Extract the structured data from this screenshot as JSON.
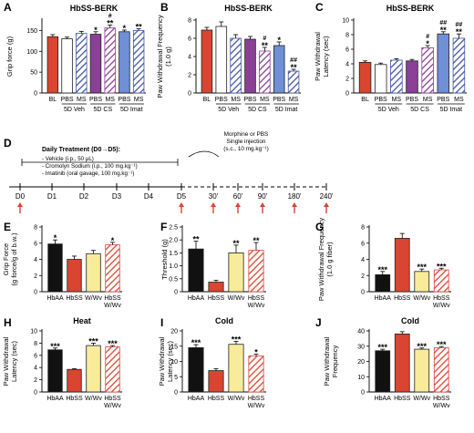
{
  "colors": {
    "red": "#d94530",
    "white": "#ffffff",
    "purple": "#8b3f97",
    "blue": "#6f8fd6",
    "black": "#111111",
    "yellow": "#f8ec9a",
    "hatch_blue": "#4355a8",
    "hatch_red": "#d94530"
  },
  "panels": [
    {
      "letter": "A",
      "title": "HbSS-BERK",
      "ylabel": "Grip force (g)",
      "ylim": [
        0,
        175
      ],
      "yticks": [
        0,
        50,
        100,
        150
      ],
      "bars": [
        {
          "label": "BL",
          "value": 135,
          "err": 5,
          "fill": "red",
          "sig": [
            ""
          ]
        },
        {
          "label": "PBS",
          "value": 130,
          "err": 4,
          "fill": "white",
          "sig": [
            ""
          ]
        },
        {
          "label": "MS",
          "value": 143,
          "err": 5,
          "fill": "hatch_blue",
          "sig": [
            ""
          ]
        },
        {
          "label": "PBS",
          "value": 141,
          "err": 6,
          "fill": "purple",
          "sig": [
            "*"
          ]
        },
        {
          "label": "MS",
          "value": 156,
          "err": 7,
          "fill": "hatch_purple",
          "sig": [
            "#",
            "**"
          ]
        },
        {
          "label": "PBS",
          "value": 147,
          "err": 4,
          "fill": "blue",
          "sig": [
            "*"
          ]
        },
        {
          "label": "MS",
          "value": 150,
          "err": 4,
          "fill": "hatch_blue",
          "sig": [
            "**"
          ]
        }
      ],
      "groups": [
        {
          "label": "5D Veh",
          "from": 1,
          "to": 2
        },
        {
          "label": "5D CS",
          "from": 3,
          "to": 4
        },
        {
          "label": "5D Imat",
          "from": 5,
          "to": 6
        }
      ]
    },
    {
      "letter": "B",
      "title": "HbSS-BERK",
      "ylabel": "Paw Withdrawal Frequency (1.0 g)",
      "ylim": [
        0,
        8
      ],
      "yticks": [
        0,
        2,
        4,
        6,
        8
      ],
      "bars": [
        {
          "label": "BL",
          "value": 6.9,
          "err": 0.3,
          "fill": "red",
          "sig": [
            ""
          ]
        },
        {
          "label": "PBS",
          "value": 7.3,
          "err": 0.5,
          "fill": "white",
          "sig": [
            ""
          ]
        },
        {
          "label": "MS",
          "value": 6.0,
          "err": 0.4,
          "fill": "hatch_blue",
          "sig": [
            ""
          ]
        },
        {
          "label": "PBS",
          "value": 5.9,
          "err": 0.3,
          "fill": "purple",
          "sig": [
            ""
          ]
        },
        {
          "label": "MS",
          "value": 4.6,
          "err": 0.4,
          "fill": "hatch_purple",
          "sig": [
            "#",
            "**"
          ]
        },
        {
          "label": "PBS",
          "value": 5.2,
          "err": 0.4,
          "fill": "blue",
          "sig": [
            "*"
          ]
        },
        {
          "label": "MS",
          "value": 2.4,
          "err": 0.2,
          "fill": "hatch_blue",
          "sig": [
            "##",
            "**"
          ]
        }
      ],
      "groups": [
        {
          "label": "5D Veh",
          "from": 1,
          "to": 2
        },
        {
          "label": "5D CS",
          "from": 3,
          "to": 4
        },
        {
          "label": "5D Imat",
          "from": 5,
          "to": 6
        }
      ]
    },
    {
      "letter": "C",
      "title": "HbSS-BERK",
      "ylabel": "Paw Withdrawal Latency (sec)",
      "ylim": [
        0,
        10
      ],
      "yticks": [
        0,
        2,
        4,
        6,
        8,
        10
      ],
      "bars": [
        {
          "label": "BL",
          "value": 4.2,
          "err": 0.2,
          "fill": "red",
          "sig": [
            ""
          ]
        },
        {
          "label": "PBS",
          "value": 3.9,
          "err": 0.2,
          "fill": "white",
          "sig": [
            ""
          ]
        },
        {
          "label": "MS",
          "value": 4.5,
          "err": 0.2,
          "fill": "hatch_blue",
          "sig": [
            ""
          ]
        },
        {
          "label": "PBS",
          "value": 4.4,
          "err": 0.2,
          "fill": "purple",
          "sig": [
            ""
          ]
        },
        {
          "label": "MS",
          "value": 6.2,
          "err": 0.3,
          "fill": "hatch_purple",
          "sig": [
            "#",
            "*"
          ]
        },
        {
          "label": "PBS",
          "value": 8.1,
          "err": 0.3,
          "fill": "blue",
          "sig": [
            "##",
            "**"
          ]
        },
        {
          "label": "MS",
          "value": 7.5,
          "err": 0.6,
          "fill": "hatch_blue",
          "sig": [
            "##",
            "**"
          ]
        }
      ],
      "groups": [
        {
          "label": "5D Veh",
          "from": 1,
          "to": 2
        },
        {
          "label": "5D CS",
          "from": 3,
          "to": 4
        },
        {
          "label": "5D Imat",
          "from": 5,
          "to": 6
        }
      ]
    },
    {
      "letter": "E",
      "title": "",
      "ylabel": "Grip Force (g force/g of b.w.)",
      "ylim": [
        0,
        8
      ],
      "yticks": [
        0,
        2,
        4,
        6,
        8
      ],
      "bars": [
        {
          "label": "HbAA",
          "value": 5.9,
          "err": 0.5,
          "fill": "black",
          "sig": [
            "*"
          ]
        },
        {
          "label": "HbSS",
          "value": 4.0,
          "err": 0.4,
          "fill": "red",
          "sig": [
            ""
          ]
        },
        {
          "label": "W/Wv",
          "value": 4.7,
          "err": 0.4,
          "fill": "yellow",
          "sig": [
            ""
          ]
        },
        {
          "label": "HbSS W/Wv",
          "value": 5.8,
          "err": 0.3,
          "fill": "hatch_red",
          "sig": [
            "*"
          ]
        }
      ],
      "groups": []
    },
    {
      "letter": "F",
      "title": "",
      "ylabel": "Threshold (g)",
      "ylim": [
        0,
        2.5
      ],
      "yticks": [
        0,
        0.5,
        1.0,
        1.5,
        2.0,
        2.5
      ],
      "bars": [
        {
          "label": "HbAA",
          "value": 1.65,
          "err": 0.3,
          "fill": "black",
          "sig": [
            "**"
          ]
        },
        {
          "label": "HbSS",
          "value": 0.37,
          "err": 0.07,
          "fill": "red",
          "sig": [
            ""
          ]
        },
        {
          "label": "W/Wv",
          "value": 1.5,
          "err": 0.3,
          "fill": "yellow",
          "sig": [
            "**"
          ]
        },
        {
          "label": "HbSS W/Wv",
          "value": 1.6,
          "err": 0.3,
          "fill": "hatch_red",
          "sig": [
            "**"
          ]
        }
      ],
      "groups": []
    },
    {
      "letter": "G",
      "title": "",
      "ylabel": "Paw Withdrawal Frequency (1.0 g fiber)",
      "ylim": [
        0,
        8
      ],
      "yticks": [
        0,
        2,
        4,
        6,
        8
      ],
      "bars": [
        {
          "label": "HbAA",
          "value": 2.1,
          "err": 0.4,
          "fill": "black",
          "sig": [
            "***"
          ]
        },
        {
          "label": "HbSS",
          "value": 6.6,
          "err": 0.6,
          "fill": "red",
          "sig": [
            ""
          ]
        },
        {
          "label": "W/Wv",
          "value": 2.5,
          "err": 0.3,
          "fill": "yellow",
          "sig": [
            "***"
          ]
        },
        {
          "label": "HbSS W/Wv",
          "value": 2.7,
          "err": 0.2,
          "fill": "hatch_red",
          "sig": [
            "***"
          ]
        }
      ],
      "groups": []
    },
    {
      "letter": "H",
      "title": "Heat",
      "ylabel": "Paw Withdrawal Latency (sec)",
      "ylim": [
        0,
        10
      ],
      "yticks": [
        0,
        2,
        4,
        6,
        8,
        10
      ],
      "bars": [
        {
          "label": "HbAA",
          "value": 6.9,
          "err": 0.3,
          "fill": "black",
          "sig": [
            "***"
          ]
        },
        {
          "label": "HbSS",
          "value": 3.7,
          "err": 0.1,
          "fill": "red",
          "sig": [
            ""
          ]
        },
        {
          "label": "W/Wv",
          "value": 7.6,
          "err": 0.4,
          "fill": "yellow",
          "sig": [
            "***"
          ]
        },
        {
          "label": "HbSS W/Wv",
          "value": 7.4,
          "err": 0.2,
          "fill": "hatch_red",
          "sig": [
            "***"
          ]
        }
      ],
      "groups": []
    },
    {
      "letter": "I",
      "title": "Cold",
      "ylabel": "Paw Withdrawal Latency (sec)",
      "ylim": [
        0,
        20
      ],
      "yticks": [
        0,
        5,
        10,
        15,
        20
      ],
      "bars": [
        {
          "label": "HbAA",
          "value": 14.5,
          "err": 1.0,
          "fill": "black",
          "sig": [
            "***"
          ]
        },
        {
          "label": "HbSS",
          "value": 7.0,
          "err": 0.6,
          "fill": "red",
          "sig": [
            ""
          ]
        },
        {
          "label": "W/Wv",
          "value": 15.6,
          "err": 1.0,
          "fill": "yellow",
          "sig": [
            "***"
          ]
        },
        {
          "label": "HbSS W/Wv",
          "value": 11.8,
          "err": 0.6,
          "fill": "hatch_red",
          "sig": [
            "*"
          ]
        }
      ],
      "groups": []
    },
    {
      "letter": "J",
      "title": "Cold",
      "ylabel": "Paw Withdrawal Frequency",
      "ylim": [
        0,
        40
      ],
      "yticks": [
        0,
        10,
        20,
        30,
        40
      ],
      "bars": [
        {
          "label": "HbAA",
          "value": 27,
          "err": 1.0,
          "fill": "black",
          "sig": [
            "***"
          ]
        },
        {
          "label": "HbSS",
          "value": 38,
          "err": 1.5,
          "fill": "red",
          "sig": [
            ""
          ]
        },
        {
          "label": "W/Wv",
          "value": 28,
          "err": 0.8,
          "fill": "yellow",
          "sig": [
            "***"
          ]
        },
        {
          "label": "HbSS W/Wv",
          "value": 29,
          "err": 0.8,
          "fill": "hatch_red",
          "sig": [
            "***"
          ]
        }
      ],
      "groups": []
    }
  ],
  "chart_data": [
    {
      "panel": "A",
      "type": "bar",
      "title": "HbSS-BERK",
      "ylabel": "Grip force (g)",
      "ylim": [
        0,
        175
      ],
      "categories": [
        "BL",
        "5D Veh PBS",
        "5D Veh MS",
        "5D CS PBS",
        "5D CS MS",
        "5D Imat PBS",
        "5D Imat MS"
      ],
      "values": [
        135,
        130,
        143,
        141,
        156,
        147,
        150
      ]
    },
    {
      "panel": "B",
      "type": "bar",
      "title": "HbSS-BERK",
      "ylabel": "Paw Withdrawal Frequency (1.0 g)",
      "ylim": [
        0,
        8
      ],
      "categories": [
        "BL",
        "5D Veh PBS",
        "5D Veh MS",
        "5D CS PBS",
        "5D CS MS",
        "5D Imat PBS",
        "5D Imat MS"
      ],
      "values": [
        6.9,
        7.3,
        6.0,
        5.9,
        4.6,
        5.2,
        2.4
      ]
    },
    {
      "panel": "C",
      "type": "bar",
      "title": "HbSS-BERK",
      "ylabel": "Paw Withdrawal Latency (sec)",
      "ylim": [
        0,
        10
      ],
      "categories": [
        "BL",
        "5D Veh PBS",
        "5D Veh MS",
        "5D CS PBS",
        "5D CS MS",
        "5D Imat PBS",
        "5D Imat MS"
      ],
      "values": [
        4.2,
        3.9,
        4.5,
        4.4,
        6.2,
        8.1,
        7.5
      ]
    },
    {
      "panel": "E",
      "type": "bar",
      "ylabel": "Grip Force (g force/g of b.w.)",
      "ylim": [
        0,
        8
      ],
      "categories": [
        "HbAA",
        "HbSS",
        "W/Wv",
        "HbSS W/Wv"
      ],
      "values": [
        5.9,
        4.0,
        4.7,
        5.8
      ]
    },
    {
      "panel": "F",
      "type": "bar",
      "ylabel": "Threshold (g)",
      "ylim": [
        0,
        2.5
      ],
      "categories": [
        "HbAA",
        "HbSS",
        "W/Wv",
        "HbSS W/Wv"
      ],
      "values": [
        1.65,
        0.37,
        1.5,
        1.6
      ]
    },
    {
      "panel": "G",
      "type": "bar",
      "ylabel": "Paw Withdrawal Frequency (1.0 g fiber)",
      "ylim": [
        0,
        8
      ],
      "categories": [
        "HbAA",
        "HbSS",
        "W/Wv",
        "HbSS W/Wv"
      ],
      "values": [
        2.1,
        6.6,
        2.5,
        2.7
      ]
    },
    {
      "panel": "H",
      "type": "bar",
      "title": "Heat",
      "ylabel": "Paw Withdrawal Latency (sec)",
      "ylim": [
        0,
        10
      ],
      "categories": [
        "HbAA",
        "HbSS",
        "W/Wv",
        "HbSS W/Wv"
      ],
      "values": [
        6.9,
        3.7,
        7.6,
        7.4
      ]
    },
    {
      "panel": "I",
      "type": "bar",
      "title": "Cold",
      "ylabel": "Paw Withdrawal Latency (sec)",
      "ylim": [
        0,
        20
      ],
      "categories": [
        "HbAA",
        "HbSS",
        "W/Wv",
        "HbSS W/Wv"
      ],
      "values": [
        14.5,
        7.0,
        15.6,
        11.8
      ]
    },
    {
      "panel": "J",
      "type": "bar",
      "title": "Cold",
      "ylabel": "Paw Withdrawal Frequency",
      "ylim": [
        0,
        40
      ],
      "categories": [
        "HbAA",
        "HbSS",
        "W/Wv",
        "HbSS W/Wv"
      ],
      "values": [
        27,
        38,
        28,
        29
      ]
    }
  ],
  "timeline": {
    "letter": "D",
    "heading": "Daily Treatment (D0→D5):",
    "items": [
      "Vehicle (i.p., 50 μL)",
      "Cromolyn Sodium (i.p., 100 mg.kg⁻¹)",
      "Imatinib (oral gavage, 100 mg.kg⁻¹)"
    ],
    "injection_lines": [
      "Morphine or PBS",
      "Single injection",
      "(s.c., 10 mg.kg⁻¹)"
    ],
    "days": [
      "D0",
      "D1",
      "D2",
      "D3",
      "D4",
      "D5"
    ],
    "minutes": [
      "30'",
      "60'",
      "90'",
      "180'",
      "240'"
    ]
  }
}
